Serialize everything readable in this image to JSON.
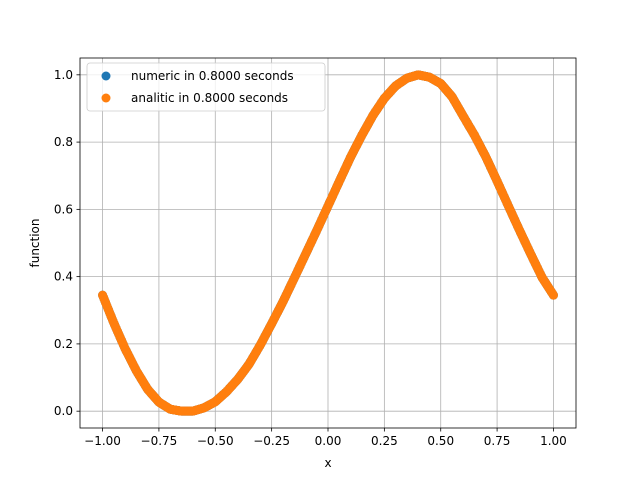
{
  "chart_data": {
    "type": "scatter",
    "title": "",
    "xlabel": "x",
    "ylabel": "function",
    "xlim": [
      -1.1,
      1.1
    ],
    "ylim": [
      -0.05,
      1.05
    ],
    "xticks": [
      -1.0,
      -0.75,
      -0.5,
      -0.25,
      0.0,
      0.25,
      0.5,
      0.75,
      1.0
    ],
    "xtick_labels": [
      "−1.00",
      "−0.75",
      "−0.50",
      "−0.25",
      "0.00",
      "0.25",
      "0.50",
      "0.75",
      "1.00"
    ],
    "yticks": [
      0.0,
      0.2,
      0.4,
      0.6,
      0.8,
      1.0
    ],
    "ytick_labels": [
      "0.0",
      "0.2",
      "0.4",
      "0.6",
      "0.8",
      "1.0"
    ],
    "grid": true,
    "legend_position": "top-left",
    "series": [
      {
        "name": "numeric in 0.8000 seconds",
        "color": "#1f77b4",
        "x": [
          -1.0,
          -0.95,
          -0.9,
          -0.85,
          -0.8,
          -0.75,
          -0.7,
          -0.65,
          -0.6,
          -0.55,
          -0.5,
          -0.45,
          -0.4,
          -0.35,
          -0.3,
          -0.25,
          -0.2,
          -0.15,
          -0.1,
          -0.05,
          0.0,
          0.05,
          0.1,
          0.15,
          0.2,
          0.25,
          0.3,
          0.35,
          0.4,
          0.45,
          0.5,
          0.55,
          0.6,
          0.65,
          0.7,
          0.75,
          0.8,
          0.85,
          0.9,
          0.95,
          1.0
        ],
        "y": [
          0.345,
          0.262,
          0.186,
          0.12,
          0.065,
          0.027,
          0.006,
          0.0,
          0.0,
          0.01,
          0.028,
          0.058,
          0.095,
          0.14,
          0.197,
          0.26,
          0.325,
          0.395,
          0.466,
          0.537,
          0.61,
          0.683,
          0.755,
          0.82,
          0.88,
          0.93,
          0.967,
          0.99,
          1.0,
          0.993,
          0.974,
          0.935,
          0.877,
          0.82,
          0.756,
          0.684,
          0.61,
          0.537,
          0.466,
          0.397,
          0.345
        ]
      },
      {
        "name": "analitic in 0.8000 seconds",
        "color": "#ff7f0e",
        "x": [
          -1.0,
          -0.95,
          -0.9,
          -0.85,
          -0.8,
          -0.75,
          -0.7,
          -0.65,
          -0.6,
          -0.55,
          -0.5,
          -0.45,
          -0.4,
          -0.35,
          -0.3,
          -0.25,
          -0.2,
          -0.15,
          -0.1,
          -0.05,
          0.0,
          0.05,
          0.1,
          0.15,
          0.2,
          0.25,
          0.3,
          0.35,
          0.4,
          0.45,
          0.5,
          0.55,
          0.6,
          0.65,
          0.7,
          0.75,
          0.8,
          0.85,
          0.9,
          0.95,
          1.0
        ],
        "y": [
          0.345,
          0.262,
          0.186,
          0.12,
          0.065,
          0.027,
          0.006,
          0.0,
          0.0,
          0.01,
          0.028,
          0.058,
          0.095,
          0.14,
          0.197,
          0.26,
          0.325,
          0.395,
          0.466,
          0.537,
          0.61,
          0.683,
          0.755,
          0.82,
          0.88,
          0.93,
          0.967,
          0.99,
          1.0,
          0.993,
          0.974,
          0.935,
          0.877,
          0.82,
          0.756,
          0.684,
          0.61,
          0.537,
          0.466,
          0.397,
          0.345
        ]
      }
    ]
  }
}
